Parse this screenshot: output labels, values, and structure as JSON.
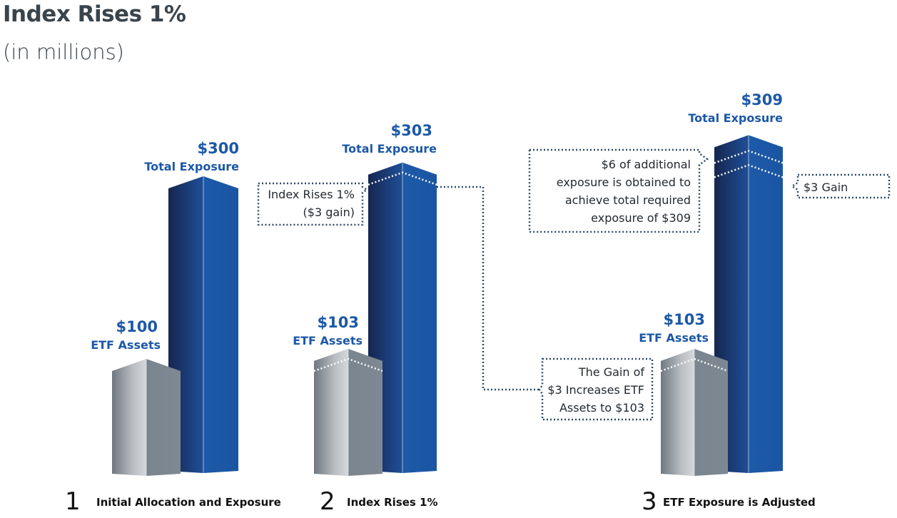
{
  "title": "Index Rises 1%",
  "subtitle": "(in millions)",
  "colors": {
    "exposure_dark": "#1c2f63",
    "exposure_light": "#1d5aa8",
    "assets_light": "#c9ccd0",
    "assets_dark": "#7c8791",
    "value_text": "#1c58a6",
    "callout_border": "#2d4b6b"
  },
  "chart_data": {
    "type": "bar",
    "units": "millions",
    "categories": [
      "Initial Allocation and Exposure",
      "Index Rises 1%",
      "ETF Exposure is Adjusted"
    ],
    "series": [
      {
        "name": "ETF Assets",
        "values": [
          100,
          103,
          103
        ]
      },
      {
        "name": "Total Exposure",
        "values": [
          300,
          303,
          309
        ]
      }
    ]
  },
  "steps": [
    {
      "number": "1",
      "label": "Initial Allocation and Exposure",
      "assets_value": "$100",
      "assets_label": "ETF Assets",
      "exposure_value": "$300",
      "exposure_label": "Total Exposure"
    },
    {
      "number": "2",
      "label": "Index Rises 1%",
      "assets_value": "$103",
      "assets_label": "ETF Assets",
      "exposure_value": "$303",
      "exposure_label": "Total Exposure"
    },
    {
      "number": "3",
      "label": "ETF Exposure is Adjusted",
      "assets_value": "$103",
      "assets_label": "ETF Assets",
      "exposure_value": "$309",
      "exposure_label": "Total Exposure"
    }
  ],
  "callouts": {
    "index_rise": [
      "Index Rises 1%",
      "($3 gain)"
    ],
    "gain_increase": [
      "The Gain of",
      "$3 Increases ETF",
      "Assets to $103"
    ],
    "additional": [
      "$6 of additional",
      "exposure is obtained to",
      "achieve total required",
      "exposure of $309"
    ],
    "gain3": [
      "$3 Gain"
    ]
  }
}
